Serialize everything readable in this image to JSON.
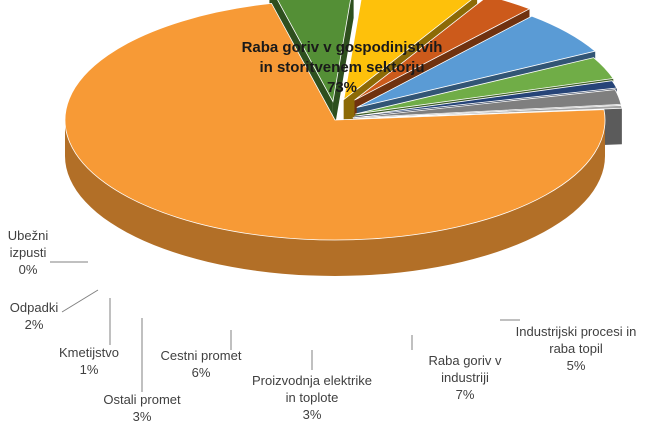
{
  "chart_data": {
    "type": "pie",
    "style": "3d-exploded",
    "title": "",
    "slices": [
      {
        "key": "raba-goriv-gospodinjstva",
        "lines": [
          "Raba goriv v gospodinjstvih",
          "in storitvenem sektorju"
        ],
        "pct_label": "73%",
        "value": 73,
        "color": "#f79a36"
      },
      {
        "key": "industrijski-procesi",
        "lines": [
          "Industrijski procesi in",
          "raba topil"
        ],
        "pct_label": "5%",
        "value": 5,
        "color": "#548f36"
      },
      {
        "key": "raba-goriv-industrija",
        "lines": [
          "Raba goriv v",
          "industriji"
        ],
        "pct_label": "7%",
        "value": 7,
        "color": "#fec10b"
      },
      {
        "key": "proizvodnja-elektrike",
        "lines": [
          "Proizvodnja elektrike",
          "in toplote"
        ],
        "pct_label": "3%",
        "value": 3,
        "color": "#cc5a1b"
      },
      {
        "key": "cestni-promet",
        "lines": [
          "Cestni promet"
        ],
        "pct_label": "6%",
        "value": 6,
        "color": "#5a9bd5"
      },
      {
        "key": "ostali-promet",
        "lines": [
          "Ostali promet"
        ],
        "pct_label": "3%",
        "value": 3,
        "color": "#70ad47"
      },
      {
        "key": "kmetijstvo",
        "lines": [
          "Kmetijstvo"
        ],
        "pct_label": "1%",
        "value": 1,
        "color": "#264478"
      },
      {
        "key": "odpadki",
        "lines": [
          "Odpadki"
        ],
        "pct_label": "2%",
        "value": 2,
        "color": "#7f7f7f"
      },
      {
        "key": "ubezni-izpusti",
        "lines": [
          "Ubežni",
          "izpusti"
        ],
        "pct_label": "0%",
        "value": 0,
        "color": "#a5a5a5"
      }
    ]
  }
}
